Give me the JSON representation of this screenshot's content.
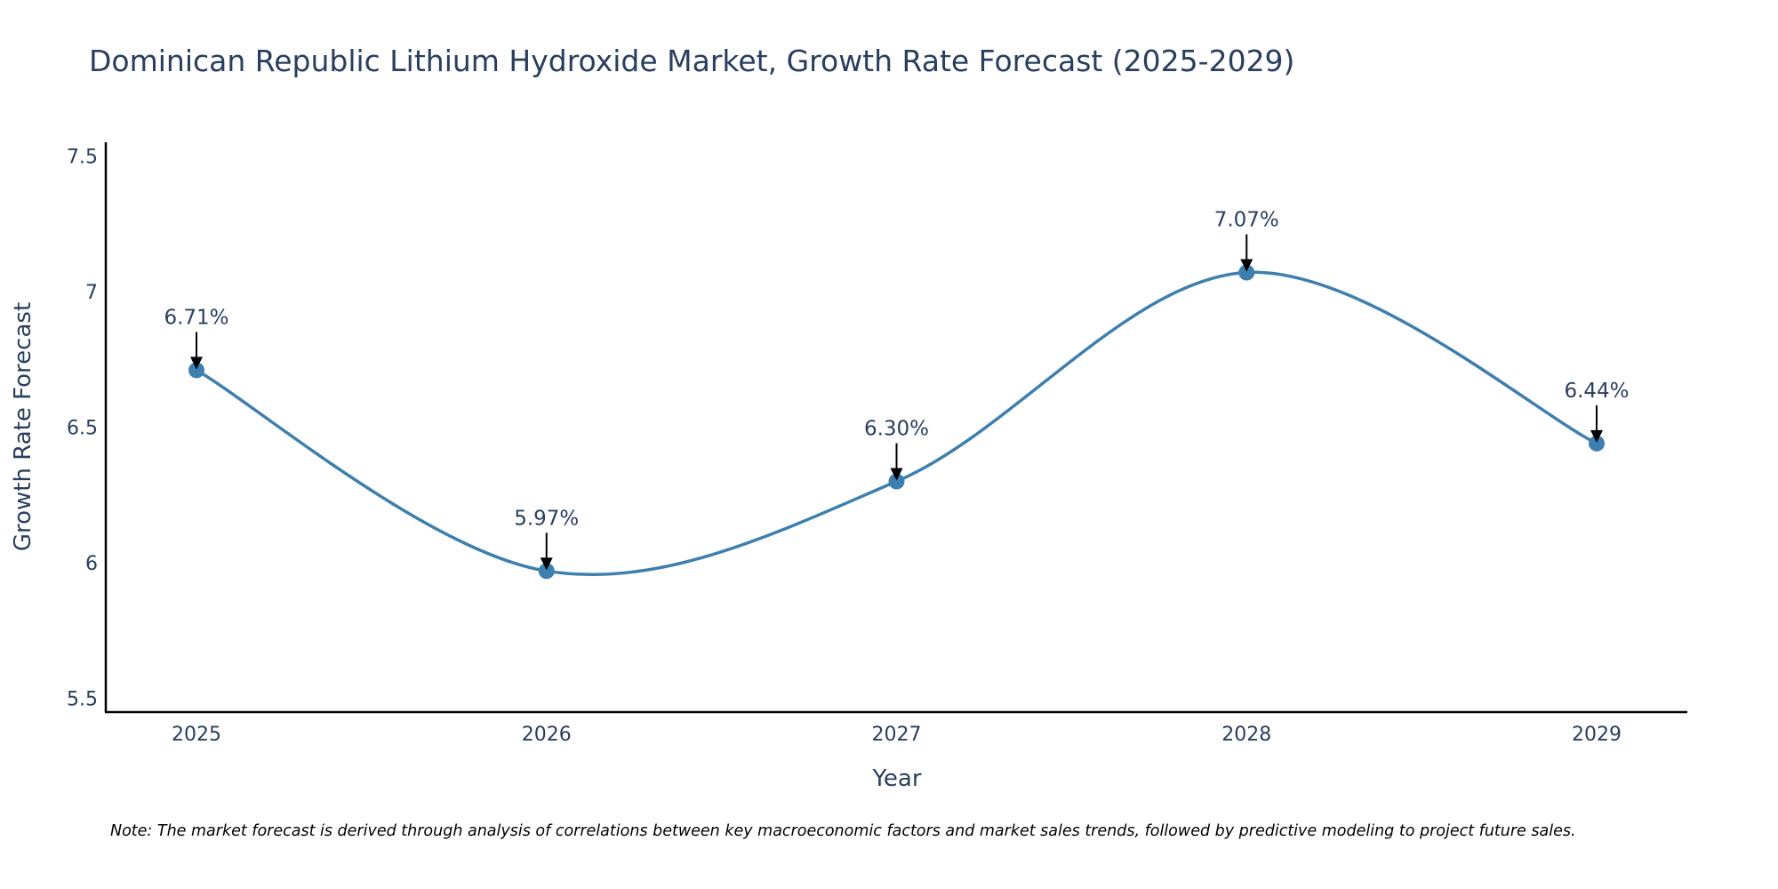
{
  "chart_data": {
    "type": "line",
    "title": "Dominican Republic Lithium Hydroxide Market, Growth Rate Forecast (2025-2029)",
    "xlabel": "Year",
    "ylabel": "Growth Rate Forecast",
    "categories": [
      "2025",
      "2026",
      "2027",
      "2028",
      "2029"
    ],
    "values": [
      6.71,
      5.97,
      6.3,
      7.07,
      6.44
    ],
    "data_labels": [
      "6.71%",
      "5.97%",
      "6.30%",
      "7.07%",
      "6.44%"
    ],
    "ylim": [
      5.45,
      7.55
    ],
    "yticks": [
      5.5,
      6,
      6.5,
      7,
      7.5
    ],
    "ytick_labels": [
      "5.5",
      "6",
      "6.5",
      "7",
      "7.5"
    ],
    "line_shape": "spline",
    "grid": false,
    "legend": "none",
    "colors": {
      "line": "#3d7fae",
      "marker": "#3d7fae",
      "arrow": "#000000",
      "axis": "#000000",
      "text": "#2a3f5f"
    },
    "note": "Note: The market forecast is derived through analysis of correlations between key macroeconomic factors and market sales trends, followed by predictive modeling to project future sales."
  }
}
